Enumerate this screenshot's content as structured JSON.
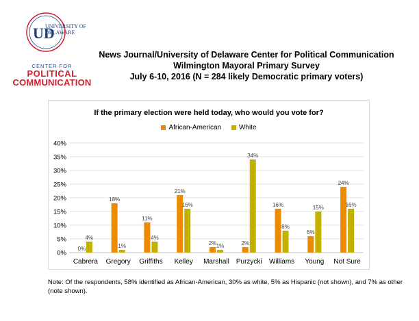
{
  "logo": {
    "ud_mark": "UD",
    "university_name_line1": "UNIVERSITY OF",
    "university_name_line2": "DELAWARE",
    "center_for": "CENTER FOR",
    "political": "POLITICAL",
    "communication": "COMMUNICATION",
    "colors": {
      "blue": "#1f3f7a",
      "red": "#d0202e"
    }
  },
  "header": {
    "line1": "News Journal/University of Delaware Center for Political Communication",
    "line2": "Wilmington Mayoral Primary Survey",
    "line3": "July 6-10, 2016 (N = 284 likely Democratic primary voters)"
  },
  "chart_data": {
    "type": "bar",
    "title": "If the primary election were held today, who would you vote for?",
    "categories": [
      "Cabrera",
      "Gregory",
      "Griffiths",
      "Kelley",
      "Marshall",
      "Purzycki",
      "Williams",
      "Young",
      "Not Sure"
    ],
    "series": [
      {
        "name": "African-American",
        "color": "#ed8b00",
        "values": [
          0,
          18,
          11,
          21,
          2,
          2,
          16,
          6,
          24
        ]
      },
      {
        "name": "White",
        "color": "#c4b000",
        "values": [
          4,
          1,
          4,
          16,
          1,
          34,
          8,
          15,
          16
        ]
      }
    ],
    "ylim": [
      0,
      40
    ],
    "yticks": [
      "0%",
      "5%",
      "10%",
      "15%",
      "20%",
      "25%",
      "30%",
      "35%",
      "40%"
    ],
    "legend_position": "top-center",
    "grid": true,
    "value_suffix": "%"
  },
  "note": "Note: Of the respondents, 58% identified as African-American, 30% as white, 5% as Hispanic (not shown), and 7% as other (note shown)."
}
